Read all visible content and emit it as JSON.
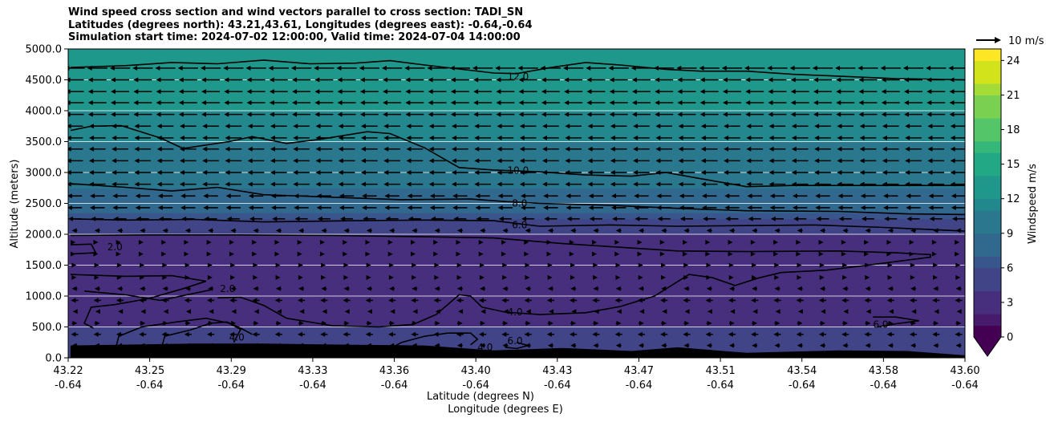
{
  "title_lines": [
    "Wind speed cross section and wind vectors parallel to cross section: TADI_SN",
    "Latitudes (degrees north): 43.21,43.61, Longitudes (degrees east): -0.64,-0.64",
    "Simulation start time: 2024-07-02 12:00:00, Valid time: 2024-07-04 14:00:00"
  ],
  "quiver_key_label": "10 m/s",
  "chart_data": {
    "type": "heatmap",
    "subtype": "filled contour cross section with wind vectors and contour lines",
    "xlabel_line1": "Latitude (degrees N)",
    "xlabel_line2": "Longitude (degrees E)",
    "ylabel": "Altitude (meters)",
    "ylim": [
      0,
      5000
    ],
    "xlim": [
      43.215,
      43.605
    ],
    "x_ticks": [
      {
        "lat": "43.22",
        "lon": "-0.64"
      },
      {
        "lat": "43.25",
        "lon": "-0.64"
      },
      {
        "lat": "43.29",
        "lon": "-0.64"
      },
      {
        "lat": "43.33",
        "lon": "-0.64"
      },
      {
        "lat": "43.36",
        "lon": "-0.64"
      },
      {
        "lat": "43.40",
        "lon": "-0.64"
      },
      {
        "lat": "43.43",
        "lon": "-0.64"
      },
      {
        "lat": "43.47",
        "lon": "-0.64"
      },
      {
        "lat": "43.51",
        "lon": "-0.64"
      },
      {
        "lat": "43.54",
        "lon": "-0.64"
      },
      {
        "lat": "43.58",
        "lon": "-0.64"
      },
      {
        "lat": "43.60",
        "lon": "-0.64"
      }
    ],
    "y_ticks": [
      "0.0",
      "500.0",
      "1000.0",
      "1500.0",
      "2000.0",
      "2500.0",
      "3000.0",
      "3500.0",
      "4000.0",
      "4500.0",
      "5000.0"
    ],
    "colorbar": {
      "label": "Windspeed m/s",
      "vmin": 0,
      "vmax": 25,
      "ticks": [
        "0",
        "3",
        "6",
        "9",
        "12",
        "15",
        "18",
        "21",
        "24"
      ],
      "colormap": "viridis",
      "extend": "min"
    },
    "wind_speed_profile_by_altitude": [
      {
        "altitude": 0,
        "speed": 4.5
      },
      {
        "altitude": 500,
        "speed": 4.0
      },
      {
        "altitude": 1000,
        "speed": 2.0
      },
      {
        "altitude": 1500,
        "speed": 2.0
      },
      {
        "altitude": 2000,
        "speed": 4.0
      },
      {
        "altitude": 2500,
        "speed": 8.0
      },
      {
        "altitude": 3000,
        "speed": 10.0
      },
      {
        "altitude": 3500,
        "speed": 11.0
      },
      {
        "altitude": 4000,
        "speed": 12.0
      },
      {
        "altitude": 4500,
        "speed": 12.5
      },
      {
        "altitude": 5000,
        "speed": 13.5
      }
    ],
    "contour_levels": [
      "2.0",
      "4.0",
      "6.0",
      "8.0",
      "10.0",
      "12.0"
    ],
    "contour_labels": [
      {
        "text": "12.0",
        "lat": 43.406,
        "alt": 4550
      },
      {
        "text": "10.0",
        "lat": 43.406,
        "alt": 3030
      },
      {
        "text": "8.0",
        "lat": 43.408,
        "alt": 2500
      },
      {
        "text": "6.0",
        "lat": 43.408,
        "alt": 2150
      },
      {
        "text": "4.0",
        "lat": 43.406,
        "alt": 740
      },
      {
        "text": "6.0",
        "lat": 43.406,
        "alt": 270
      },
      {
        "text": "2.0",
        "lat": 43.232,
        "alt": 1790
      },
      {
        "text": "2.0",
        "lat": 43.281,
        "alt": 1120
      },
      {
        "text": "4.0",
        "lat": 43.285,
        "alt": 330
      },
      {
        "text": "4.0",
        "lat": 43.393,
        "alt": 170
      },
      {
        "text": "6.0",
        "lat": 43.565,
        "alt": 540
      }
    ],
    "contour_lines": [
      {
        "level": "12.0",
        "points": [
          [
            43.216,
            4700
          ],
          [
            43.24,
            4730
          ],
          [
            43.26,
            4780
          ],
          [
            43.28,
            4760
          ],
          [
            43.3,
            4820
          ],
          [
            43.32,
            4760
          ],
          [
            43.34,
            4770
          ],
          [
            43.355,
            4810
          ],
          [
            43.37,
            4740
          ],
          [
            43.4,
            4610
          ],
          [
            43.41,
            4600
          ],
          [
            43.425,
            4700
          ],
          [
            43.44,
            4780
          ],
          [
            43.455,
            4740
          ],
          [
            43.475,
            4670
          ],
          [
            43.49,
            4640
          ],
          [
            43.51,
            4640
          ],
          [
            43.53,
            4590
          ],
          [
            43.55,
            4560
          ],
          [
            43.575,
            4520
          ],
          [
            43.605,
            4500
          ]
        ]
      },
      {
        "level": "10.0",
        "points": [
          [
            43.216,
            3680
          ],
          [
            43.225,
            3750
          ],
          [
            43.238,
            3760
          ],
          [
            43.255,
            3560
          ],
          [
            43.265,
            3390
          ],
          [
            43.285,
            3500
          ],
          [
            43.295,
            3580
          ],
          [
            43.31,
            3470
          ],
          [
            43.325,
            3540
          ],
          [
            43.345,
            3660
          ],
          [
            43.355,
            3630
          ],
          [
            43.37,
            3400
          ],
          [
            43.385,
            3080
          ],
          [
            43.4,
            3040
          ],
          [
            43.42,
            3010
          ],
          [
            43.44,
            2960
          ],
          [
            43.46,
            2940
          ],
          [
            43.475,
            3000
          ],
          [
            43.49,
            2900
          ],
          [
            43.51,
            2770
          ],
          [
            43.53,
            2790
          ],
          [
            43.56,
            2790
          ],
          [
            43.605,
            2790
          ]
        ]
      },
      {
        "level": "8.0",
        "points": [
          [
            43.216,
            2820
          ],
          [
            43.24,
            2760
          ],
          [
            43.26,
            2700
          ],
          [
            43.28,
            2760
          ],
          [
            43.3,
            2640
          ],
          [
            43.33,
            2600
          ],
          [
            43.36,
            2560
          ],
          [
            43.39,
            2570
          ],
          [
            43.405,
            2530
          ],
          [
            43.42,
            2500
          ],
          [
            43.45,
            2470
          ],
          [
            43.48,
            2420
          ],
          [
            43.51,
            2380
          ],
          [
            43.55,
            2370
          ],
          [
            43.58,
            2330
          ],
          [
            43.605,
            2320
          ]
        ]
      },
      {
        "level": "6.0",
        "points": [
          [
            43.216,
            2250
          ],
          [
            43.24,
            2230
          ],
          [
            43.27,
            2240
          ],
          [
            43.3,
            2200
          ],
          [
            43.34,
            2220
          ],
          [
            43.37,
            2230
          ],
          [
            43.4,
            2220
          ],
          [
            43.42,
            2130
          ],
          [
            43.45,
            2150
          ],
          [
            43.48,
            2130
          ],
          [
            43.51,
            2140
          ],
          [
            43.54,
            2150
          ],
          [
            43.57,
            2110
          ],
          [
            43.605,
            2050
          ]
        ]
      },
      {
        "level": "6.0",
        "points": [
          [
            43.565,
            660
          ],
          [
            43.575,
            660
          ],
          [
            43.585,
            600
          ],
          [
            43.575,
            550
          ],
          [
            43.567,
            500
          ]
        ]
      },
      {
        "level": "4.0",
        "points": [
          [
            43.216,
            1350
          ],
          [
            43.24,
            1320
          ],
          [
            43.26,
            1330
          ],
          [
            43.275,
            1240
          ],
          [
            43.265,
            1120
          ],
          [
            43.25,
            960
          ],
          [
            43.235,
            860
          ],
          [
            43.225,
            820
          ],
          [
            43.222,
            560
          ],
          [
            43.226,
            480
          ]
        ]
      },
      {
        "level": "4.0",
        "points": [
          [
            43.236,
            200
          ],
          [
            43.237,
            350
          ],
          [
            43.247,
            500
          ],
          [
            43.262,
            580
          ],
          [
            43.275,
            640
          ],
          [
            43.285,
            560
          ],
          [
            43.29,
            460
          ],
          [
            43.287,
            250
          ]
        ]
      },
      {
        "level": "4.0",
        "points": [
          [
            43.256,
            210
          ],
          [
            43.257,
            350
          ],
          [
            43.268,
            450
          ],
          [
            43.277,
            560
          ],
          [
            43.284,
            580
          ],
          [
            43.29,
            480
          ],
          [
            43.295,
            380
          ]
        ]
      },
      {
        "level": "4.0",
        "points": [
          [
            43.28,
            970
          ],
          [
            43.29,
            980
          ],
          [
            43.3,
            850
          ],
          [
            43.31,
            640
          ],
          [
            43.33,
            520
          ],
          [
            43.35,
            500
          ],
          [
            43.365,
            540
          ],
          [
            43.375,
            700
          ],
          [
            43.385,
            1020
          ],
          [
            43.39,
            1000
          ],
          [
            43.395,
            820
          ],
          [
            43.405,
            740
          ],
          [
            43.42,
            700
          ],
          [
            43.44,
            730
          ],
          [
            43.455,
            830
          ],
          [
            43.47,
            1000
          ],
          [
            43.485,
            1350
          ],
          [
            43.495,
            1300
          ],
          [
            43.505,
            1170
          ],
          [
            43.515,
            1290
          ],
          [
            43.525,
            1380
          ],
          [
            43.545,
            1420
          ],
          [
            43.565,
            1510
          ],
          [
            43.59,
            1630
          ],
          [
            43.59,
            1670
          ],
          [
            43.575,
            1700
          ],
          [
            43.55,
            1730
          ],
          [
            43.51,
            1720
          ],
          [
            43.48,
            1730
          ],
          [
            43.455,
            1790
          ],
          [
            43.43,
            1850
          ],
          [
            43.4,
            1940
          ],
          [
            43.37,
            1960
          ],
          [
            43.33,
            1980
          ],
          [
            43.29,
            1990
          ],
          [
            43.25,
            1990
          ],
          [
            43.216,
            1980
          ]
        ]
      },
      {
        "level": "4.0",
        "points": [
          [
            43.355,
            150
          ],
          [
            43.36,
            250
          ],
          [
            43.37,
            350
          ],
          [
            43.38,
            400
          ],
          [
            43.39,
            400
          ],
          [
            43.393,
            300
          ],
          [
            43.39,
            210
          ]
        ]
      },
      {
        "level": "2.0",
        "points": [
          [
            43.216,
            1830
          ],
          [
            43.225,
            1840
          ],
          [
            43.227,
            1700
          ],
          [
            43.216,
            1680
          ]
        ]
      },
      {
        "level": "2.0",
        "points": [
          [
            43.222,
            1080
          ],
          [
            43.24,
            1020
          ],
          [
            43.255,
            930
          ],
          [
            43.268,
            1030
          ],
          [
            43.277,
            1100
          ]
        ]
      },
      {
        "level": "6.0",
        "points": [
          [
            43.405,
            170
          ],
          [
            43.41,
            150
          ],
          [
            43.415,
            200
          ],
          [
            43.41,
            250
          ]
        ]
      }
    ],
    "terrain_heights": [
      {
        "lat": 43.216,
        "alt": 200
      },
      {
        "lat": 43.27,
        "alt": 230
      },
      {
        "lat": 43.3,
        "alt": 230
      },
      {
        "lat": 43.34,
        "alt": 210
      },
      {
        "lat": 43.37,
        "alt": 200
      },
      {
        "lat": 43.4,
        "alt": 120
      },
      {
        "lat": 43.43,
        "alt": 160
      },
      {
        "lat": 43.46,
        "alt": 110
      },
      {
        "lat": 43.48,
        "alt": 170
      },
      {
        "lat": 43.51,
        "alt": 80
      },
      {
        "lat": 43.55,
        "alt": 120
      },
      {
        "lat": 43.58,
        "alt": 110
      },
      {
        "lat": 43.605,
        "alt": 40
      }
    ],
    "vector_rows_altitudes": [
      200,
      380,
      560,
      750,
      930,
      1120,
      1300,
      1500,
      1680,
      1870,
      2060,
      2250,
      2430,
      2620,
      2810,
      3000,
      3190,
      3380,
      3560,
      3750,
      3940,
      4130,
      4310,
      4500,
      4690
    ],
    "vector_u_by_row": [
      -3,
      -4,
      3,
      -2,
      -4,
      -3,
      2,
      2,
      1,
      1,
      -3,
      -7,
      -8,
      -8,
      -9,
      -9,
      -9,
      -9,
      -9,
      -9,
      -10,
      -10,
      -10,
      -10,
      -11
    ]
  }
}
